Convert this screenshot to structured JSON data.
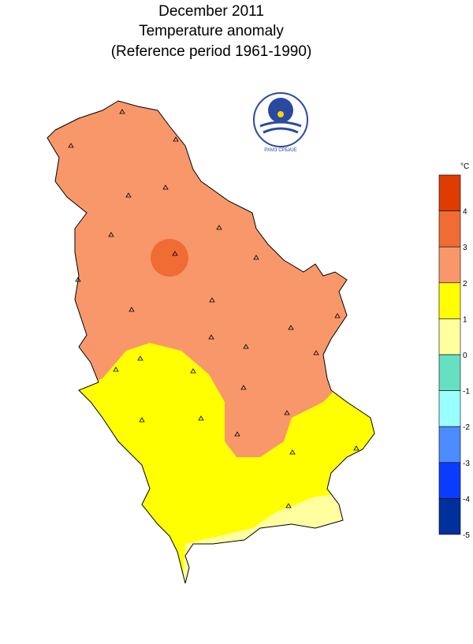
{
  "title": [
    "December 2011",
    "Temperature anomaly",
    "(Reference period 1961-1990)"
  ],
  "logo": {
    "text": "РХМЗ СРБИЈЕ"
  },
  "legend": {
    "unit": "°C",
    "ticks": [
      4,
      3,
      2,
      1,
      0,
      -1,
      -2,
      -3,
      -4,
      -5
    ],
    "colors": [
      "#e03c00",
      "#f06c34",
      "#f8986a",
      "#ffff00",
      "#ffffa0",
      "#66e0c0",
      "#99ffff",
      "#4c8cff",
      "#0a3cff",
      "#00309c"
    ]
  }
}
